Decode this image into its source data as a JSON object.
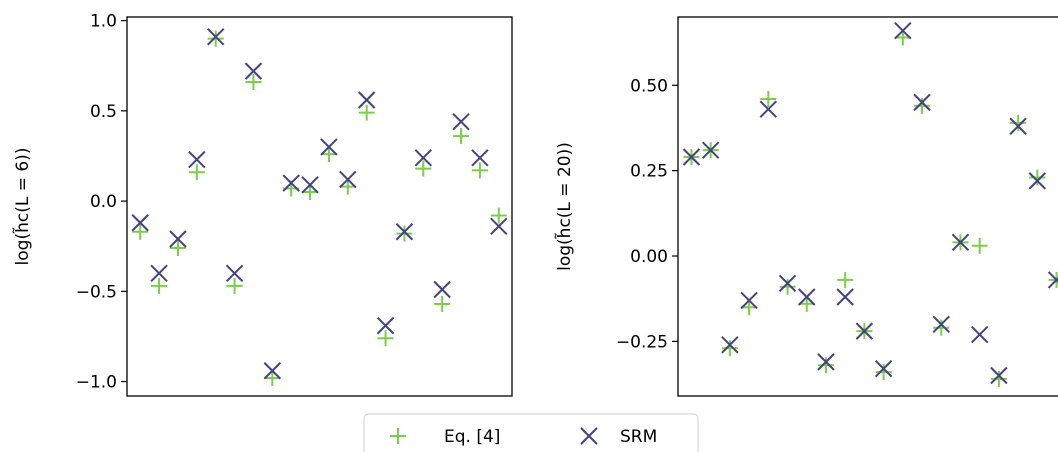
{
  "chart_data": [
    {
      "type": "scatter",
      "ylabel": "log(h̃c(L = 6))",
      "ylim": [
        -1.08,
        1.02
      ],
      "yticks": [
        {
          "value": 1.0,
          "label": "1.0"
        },
        {
          "value": 0.5,
          "label": "0.5"
        },
        {
          "value": 0.0,
          "label": "0.0"
        },
        {
          "value": -0.5,
          "label": "−0.5"
        },
        {
          "value": -1.0,
          "label": "−1.0"
        }
      ],
      "x": [
        1,
        2,
        3,
        4,
        5,
        6,
        7,
        8,
        9,
        10,
        11,
        12,
        13,
        14,
        15,
        16,
        17,
        18,
        19,
        20
      ],
      "series": [
        {
          "name": "Eq. [4]",
          "color": "#7ccd4a",
          "marker": "plus",
          "values": [
            -0.17,
            -0.47,
            -0.26,
            0.16,
            0.9,
            -0.47,
            0.66,
            -0.98,
            0.07,
            0.05,
            0.26,
            0.08,
            0.49,
            -0.76,
            -0.18,
            0.18,
            -0.57,
            0.36,
            0.17,
            -0.08
          ]
        },
        {
          "name": "SRM",
          "color": "#444382",
          "marker": "x",
          "values": [
            -0.12,
            -0.4,
            -0.21,
            0.23,
            0.91,
            -0.4,
            0.72,
            -0.94,
            0.1,
            0.09,
            0.3,
            0.12,
            0.56,
            -0.69,
            -0.17,
            0.24,
            -0.49,
            0.44,
            0.24,
            -0.14
          ]
        }
      ]
    },
    {
      "type": "scatter",
      "ylabel": "log(h̃c(L = 20))",
      "ylim": [
        -0.41,
        0.7
      ],
      "yticks": [
        {
          "value": 0.5,
          "label": "0.50"
        },
        {
          "value": 0.25,
          "label": "0.25"
        },
        {
          "value": 0.0,
          "label": "0.00"
        },
        {
          "value": -0.25,
          "label": "−0.25"
        }
      ],
      "x": [
        1,
        2,
        3,
        4,
        5,
        6,
        7,
        8,
        9,
        10,
        11,
        12,
        13,
        14,
        15,
        16,
        17,
        18,
        19,
        20
      ],
      "series": [
        {
          "name": "Eq. [4]",
          "color": "#7ccd4a",
          "marker": "plus",
          "values": [
            0.29,
            0.31,
            -0.27,
            -0.15,
            0.46,
            -0.09,
            -0.14,
            -0.32,
            -0.07,
            -0.22,
            -0.34,
            0.64,
            0.44,
            -0.21,
            0.04,
            0.03,
            -0.36,
            0.39,
            0.23,
            -0.07
          ]
        },
        {
          "name": "SRM",
          "color": "#444382",
          "marker": "x",
          "values": [
            0.29,
            0.31,
            -0.26,
            -0.13,
            0.43,
            -0.08,
            -0.12,
            -0.31,
            -0.12,
            -0.22,
            -0.33,
            0.66,
            0.45,
            -0.2,
            0.04,
            -0.23,
            -0.35,
            0.38,
            0.22,
            -0.07
          ]
        }
      ]
    }
  ],
  "legend": {
    "items": [
      {
        "label": "Eq. [4]",
        "color": "#7ccd4a",
        "marker": "plus"
      },
      {
        "label": "SRM",
        "color": "#444382",
        "marker": "x"
      }
    ]
  }
}
